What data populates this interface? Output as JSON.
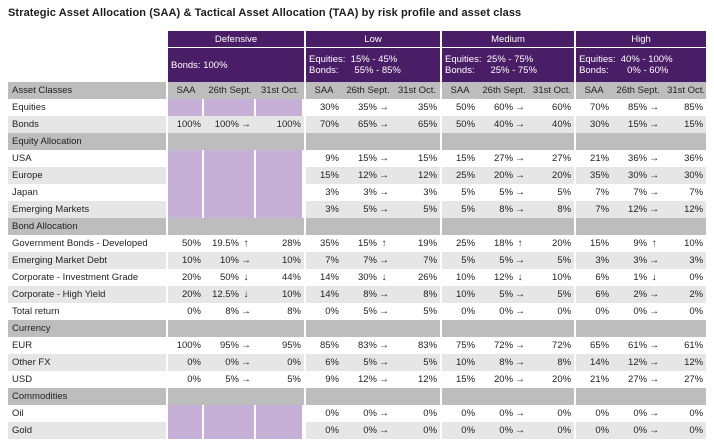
{
  "title": "Strategic Asset Allocation (SAA) & Tactical Asset Allocation (TAA) by risk profile and asset class",
  "profiles": [
    {
      "name": "Defensive",
      "desc_line1": "Bonds:  100%",
      "desc_line2": ""
    },
    {
      "name": "Low",
      "desc_line1": "Equities:  15% - 45%",
      "desc_line2": "Bonds:      55% - 85%"
    },
    {
      "name": "Medium",
      "desc_line1": "Equities:  25% - 75%",
      "desc_line2": "Bonds:      25% - 75%"
    },
    {
      "name": "High",
      "desc_line1": "Equities:  40% - 100%",
      "desc_line2": "Bonds:       0% - 60%"
    }
  ],
  "column_headers": {
    "asset_classes": "Asset Classes",
    "saa": "SAA",
    "d1": "26th Sept.",
    "d2": "31st Oct."
  },
  "icons": {
    "up": "arrow-up-icon",
    "down": "arrow-down-icon",
    "right": "arrow-right-icon"
  },
  "colors": {
    "header": "#4a1e66",
    "section": "#bdbdbd",
    "stripe": "#e6e6e6",
    "highlight": "#c7b0d8"
  },
  "rows": [
    {
      "type": "data",
      "label": "Equities",
      "cells": [
        {
          "purple": true
        },
        {
          "saa": "30%",
          "a": "35%",
          "arr": "right",
          "b": "35%"
        },
        {
          "saa": "50%",
          "a": "60%",
          "arr": "right",
          "b": "60%"
        },
        {
          "saa": "70%",
          "a": "85%",
          "arr": "right",
          "b": "85%"
        }
      ]
    },
    {
      "type": "data",
      "label": "Bonds",
      "cells": [
        {
          "saa": "100%",
          "a": "100%",
          "arr": "right",
          "b": "100%"
        },
        {
          "saa": "70%",
          "a": "65%",
          "arr": "right",
          "b": "65%"
        },
        {
          "saa": "50%",
          "a": "40%",
          "arr": "right",
          "b": "40%"
        },
        {
          "saa": "30%",
          "a": "15%",
          "arr": "right",
          "b": "15%"
        }
      ]
    },
    {
      "type": "section",
      "label": "Equity Allocation"
    },
    {
      "type": "data",
      "label": "USA",
      "cells": [
        {
          "purple": true
        },
        {
          "saa": "9%",
          "a": "15%",
          "arr": "right",
          "b": "15%"
        },
        {
          "saa": "15%",
          "a": "27%",
          "arr": "right",
          "b": "27%"
        },
        {
          "saa": "21%",
          "a": "36%",
          "arr": "right",
          "b": "36%"
        }
      ]
    },
    {
      "type": "data",
      "label": "Europe",
      "cells": [
        {
          "purple": true
        },
        {
          "saa": "15%",
          "a": "12%",
          "arr": "right",
          "b": "12%"
        },
        {
          "saa": "25%",
          "a": "20%",
          "arr": "right",
          "b": "20%"
        },
        {
          "saa": "35%",
          "a": "30%",
          "arr": "right",
          "b": "30%"
        }
      ]
    },
    {
      "type": "data",
      "label": "Japan",
      "cells": [
        {
          "purple": true
        },
        {
          "saa": "3%",
          "a": "3%",
          "arr": "right",
          "b": "3%"
        },
        {
          "saa": "5%",
          "a": "5%",
          "arr": "right",
          "b": "5%"
        },
        {
          "saa": "7%",
          "a": "7%",
          "arr": "right",
          "b": "7%"
        }
      ]
    },
    {
      "type": "data",
      "label": "Emerging Markets",
      "cells": [
        {
          "purple": true
        },
        {
          "saa": "3%",
          "a": "5%",
          "arr": "right",
          "b": "5%"
        },
        {
          "saa": "5%",
          "a": "8%",
          "arr": "right",
          "b": "8%"
        },
        {
          "saa": "7%",
          "a": "12%",
          "arr": "right",
          "b": "12%"
        }
      ]
    },
    {
      "type": "section",
      "label": "Bond Allocation"
    },
    {
      "type": "data",
      "label": "Government Bonds - Developed",
      "cells": [
        {
          "saa": "50%",
          "a": "19.5%",
          "arr": "up",
          "b": "28%"
        },
        {
          "saa": "35%",
          "a": "15%",
          "arr": "up",
          "b": "19%"
        },
        {
          "saa": "25%",
          "a": "18%",
          "arr": "up",
          "b": "20%"
        },
        {
          "saa": "15%",
          "a": "9%",
          "arr": "up",
          "b": "10%"
        }
      ]
    },
    {
      "type": "data",
      "label": "Emerging Market Debt",
      "cells": [
        {
          "saa": "10%",
          "a": "10%",
          "arr": "right",
          "b": "10%"
        },
        {
          "saa": "7%",
          "a": "7%",
          "arr": "right",
          "b": "7%"
        },
        {
          "saa": "5%",
          "a": "5%",
          "arr": "right",
          "b": "5%"
        },
        {
          "saa": "3%",
          "a": "3%",
          "arr": "right",
          "b": "3%"
        }
      ]
    },
    {
      "type": "data",
      "label": "Corporate - Investment Grade",
      "cells": [
        {
          "saa": "20%",
          "a": "50%",
          "arr": "down",
          "b": "44%"
        },
        {
          "saa": "14%",
          "a": "30%",
          "arr": "down",
          "b": "26%"
        },
        {
          "saa": "10%",
          "a": "12%",
          "arr": "down",
          "b": "10%"
        },
        {
          "saa": "6%",
          "a": "1%",
          "arr": "down",
          "b": "0%"
        }
      ]
    },
    {
      "type": "data",
      "label": "Corporate - High Yield",
      "cells": [
        {
          "saa": "20%",
          "a": "12.5%",
          "arr": "down",
          "b": "10%"
        },
        {
          "saa": "14%",
          "a": "8%",
          "arr": "right",
          "b": "8%"
        },
        {
          "saa": "10%",
          "a": "5%",
          "arr": "right",
          "b": "5%"
        },
        {
          "saa": "6%",
          "a": "2%",
          "arr": "right",
          "b": "2%"
        }
      ]
    },
    {
      "type": "data",
      "label": "Total return",
      "cells": [
        {
          "saa": "0%",
          "a": "8%",
          "arr": "right",
          "b": "8%"
        },
        {
          "saa": "0%",
          "a": "5%",
          "arr": "right",
          "b": "5%"
        },
        {
          "saa": "0%",
          "a": "0%",
          "arr": "right",
          "b": "0%"
        },
        {
          "saa": "0%",
          "a": "0%",
          "arr": "right",
          "b": "0%"
        }
      ]
    },
    {
      "type": "section",
      "label": "Currency"
    },
    {
      "type": "data",
      "label": "EUR",
      "cells": [
        {
          "saa": "100%",
          "a": "95%",
          "arr": "right",
          "b": "95%"
        },
        {
          "saa": "85%",
          "a": "83%",
          "arr": "right",
          "b": "83%"
        },
        {
          "saa": "75%",
          "a": "72%",
          "arr": "right",
          "b": "72%"
        },
        {
          "saa": "65%",
          "a": "61%",
          "arr": "right",
          "b": "61%"
        }
      ]
    },
    {
      "type": "data",
      "label": "Other FX",
      "cells": [
        {
          "saa": "0%",
          "a": "0%",
          "arr": "right",
          "b": "0%"
        },
        {
          "saa": "6%",
          "a": "5%",
          "arr": "right",
          "b": "5%"
        },
        {
          "saa": "10%",
          "a": "8%",
          "arr": "right",
          "b": "8%"
        },
        {
          "saa": "14%",
          "a": "12%",
          "arr": "right",
          "b": "12%"
        }
      ]
    },
    {
      "type": "data",
      "label": "USD",
      "cells": [
        {
          "saa": "0%",
          "a": "5%",
          "arr": "right",
          "b": "5%"
        },
        {
          "saa": "9%",
          "a": "12%",
          "arr": "right",
          "b": "12%"
        },
        {
          "saa": "15%",
          "a": "20%",
          "arr": "right",
          "b": "20%"
        },
        {
          "saa": "21%",
          "a": "27%",
          "arr": "right",
          "b": "27%"
        }
      ]
    },
    {
      "type": "section",
      "label": "Commodities"
    },
    {
      "type": "data",
      "label": "Oil",
      "cells": [
        {
          "purple": true
        },
        {
          "saa": "0%",
          "a": "0%",
          "arr": "right",
          "b": "0%"
        },
        {
          "saa": "0%",
          "a": "0%",
          "arr": "right",
          "b": "0%"
        },
        {
          "saa": "0%",
          "a": "0%",
          "arr": "right",
          "b": "0%"
        }
      ]
    },
    {
      "type": "data",
      "label": "Gold",
      "cells": [
        {
          "purple": true
        },
        {
          "saa": "0%",
          "a": "0%",
          "arr": "right",
          "b": "0%"
        },
        {
          "saa": "0%",
          "a": "0%",
          "arr": "right",
          "b": "0%"
        },
        {
          "saa": "0%",
          "a": "0%",
          "arr": "right",
          "b": "0%"
        }
      ]
    }
  ]
}
